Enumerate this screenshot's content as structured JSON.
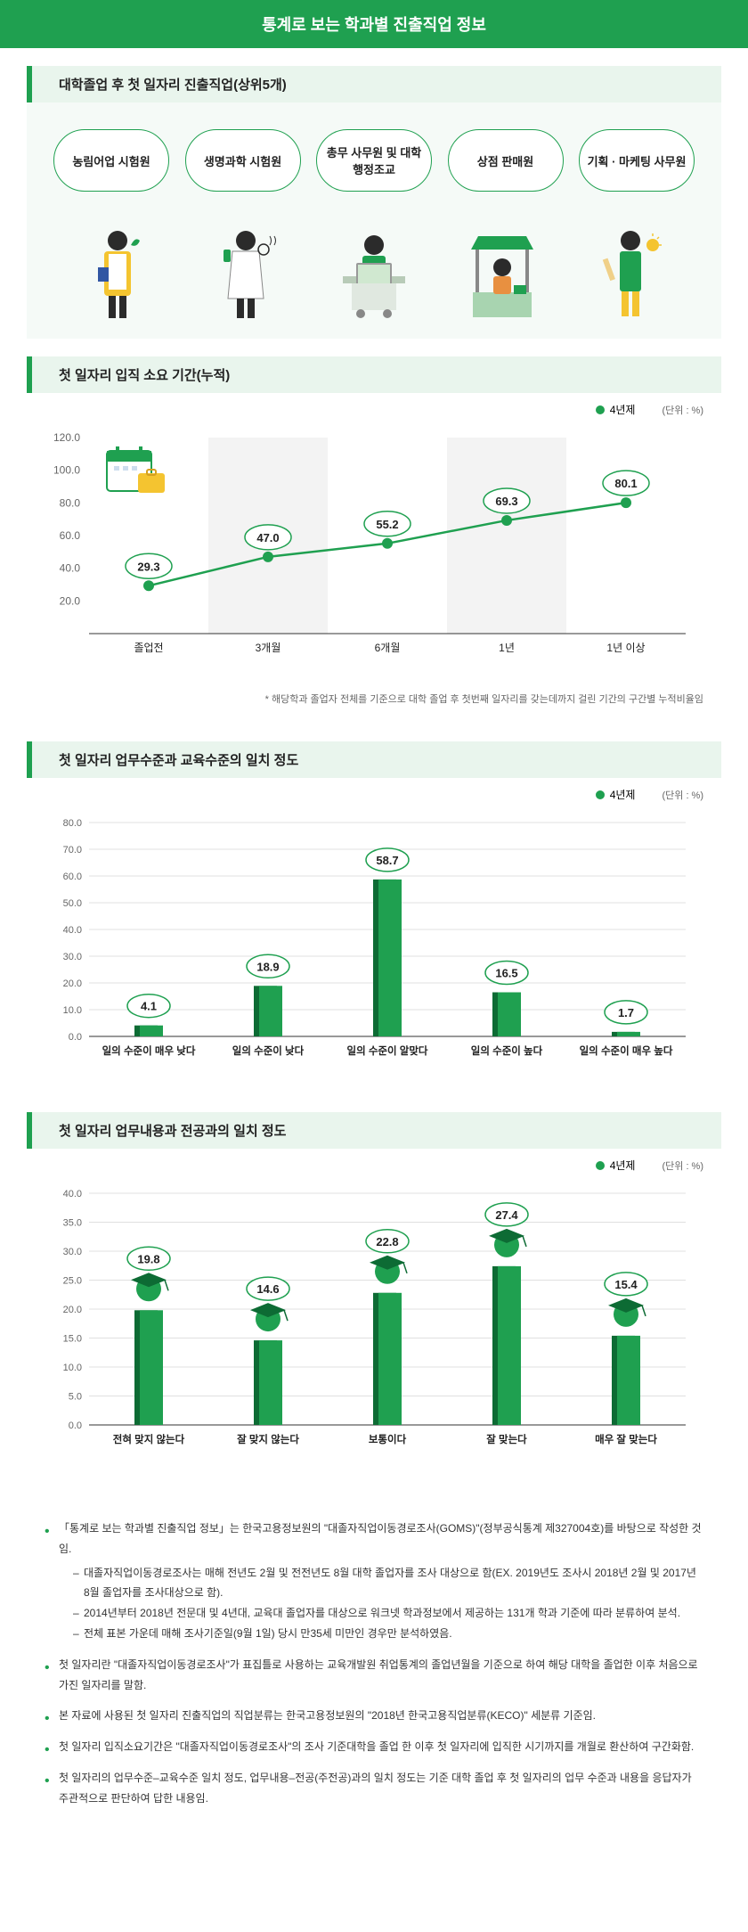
{
  "title": "통계로 보는 학과별 진출직업 정보",
  "section1": {
    "title": "대학졸업 후 첫 일자리 진출직업(상위5개)",
    "jobs": [
      "농림어업\n시험원",
      "생명과학\n시험원",
      "총무 사무원 및\n대학 행정조교",
      "상점\n판매원",
      "기획 · 마케팅\n사무원"
    ]
  },
  "section2": {
    "title": "첫 일자리 입직 소요 기간(누적)",
    "legend": "4년제",
    "unit": "(단위 : %)",
    "categories": [
      "졸업전",
      "3개월",
      "6개월",
      "1년",
      "1년 이상"
    ],
    "values": [
      29.3,
      47.0,
      55.2,
      69.3,
      80.1
    ],
    "ylim": [
      0,
      120
    ],
    "ytick_step": 20,
    "note": "* 해당학과 졸업자 전체를 기준으로 대학 졸업 후 첫번째 일자리를 갖는데까지 걸린 기간의 구간별 누적비율임",
    "color": "#1fa050"
  },
  "section3": {
    "title": "첫 일자리 업무수준과 교육수준의 일치 정도",
    "legend": "4년제",
    "unit": "(단위 : %)",
    "categories": [
      "일의 수준이 매우 낮다",
      "일의 수준이 낮다",
      "일의 수준이 알맞다",
      "일의 수준이 높다",
      "일의 수준이 매우 높다"
    ],
    "values": [
      4.1,
      18.9,
      58.7,
      16.5,
      1.7
    ],
    "ylim": [
      0,
      80
    ],
    "ytick_step": 10,
    "color": "#1fa050"
  },
  "section4": {
    "title": "첫 일자리 업무내용과 전공과의 일치 정도",
    "legend": "4년제",
    "unit": "(단위 : %)",
    "categories": [
      "전혀 맞지 않는다",
      "잘 맞지 않는다",
      "보통이다",
      "잘 맞는다",
      "매우 잘 맞는다"
    ],
    "values": [
      19.8,
      14.6,
      22.8,
      27.4,
      15.4
    ],
    "ylim": [
      0,
      40
    ],
    "ytick_step": 5,
    "color": "#1fa050"
  },
  "footnotes": [
    {
      "text": "「통계로 보는 학과별 진출직업 정보」는 한국고용정보원의 \"대졸자직업이동경로조사(GOMS)\"(정부공식통계 제327004호)를 바탕으로 작성한 것임.",
      "sub": [
        "대졸자직업이동경로조사는 매해 전년도 2월 및 전전년도 8월 대학 졸업자를 조사 대상으로 함(EX. 2019년도 조사시 2018년 2월 및 2017년 8월 졸업자를 조사대상으로 함).",
        "2014년부터 2018년 전문대 및 4년대, 교육대 졸업자를 대상으로 워크넷 학과정보에서 제공하는 131개 학과 기준에 따라 분류하여 분석.",
        "전체 표본 가운데 매해 조사기준일(9월 1일) 당시 만35세 미만인 경우만 분석하였음."
      ]
    },
    {
      "text": "첫 일자리란 \"대졸자직업이동경로조사\"가 표집틀로 사용하는 교육개발원 취업통계의 졸업년월을 기준으로 하여 해당 대학을 졸업한 이후 처음으로 가진 일자리를 말함."
    },
    {
      "text": "본 자료에 사용된 첫 일자리 진출직업의 직업분류는 한국고용정보원의 \"2018년 한국고용직업분류(KECO)\" 세분류 기준임."
    },
    {
      "text": "첫 일자리 입직소요기간은 \"대졸자직업이동경로조사\"의 조사 기준대학을 졸업 한 이후 첫 일자리에 입직한 시기까지를 개월로 환산하여 구간화함."
    },
    {
      "text": "첫 일자리의 업무수준–교육수준 일치 정도, 업무내용–전공(주전공)과의 일치 정도는 기준 대학 졸업 후 첫 일자리의 업무 수준과 내용을 응답자가 주관적으로 판단하여 답한 내용임."
    }
  ]
}
